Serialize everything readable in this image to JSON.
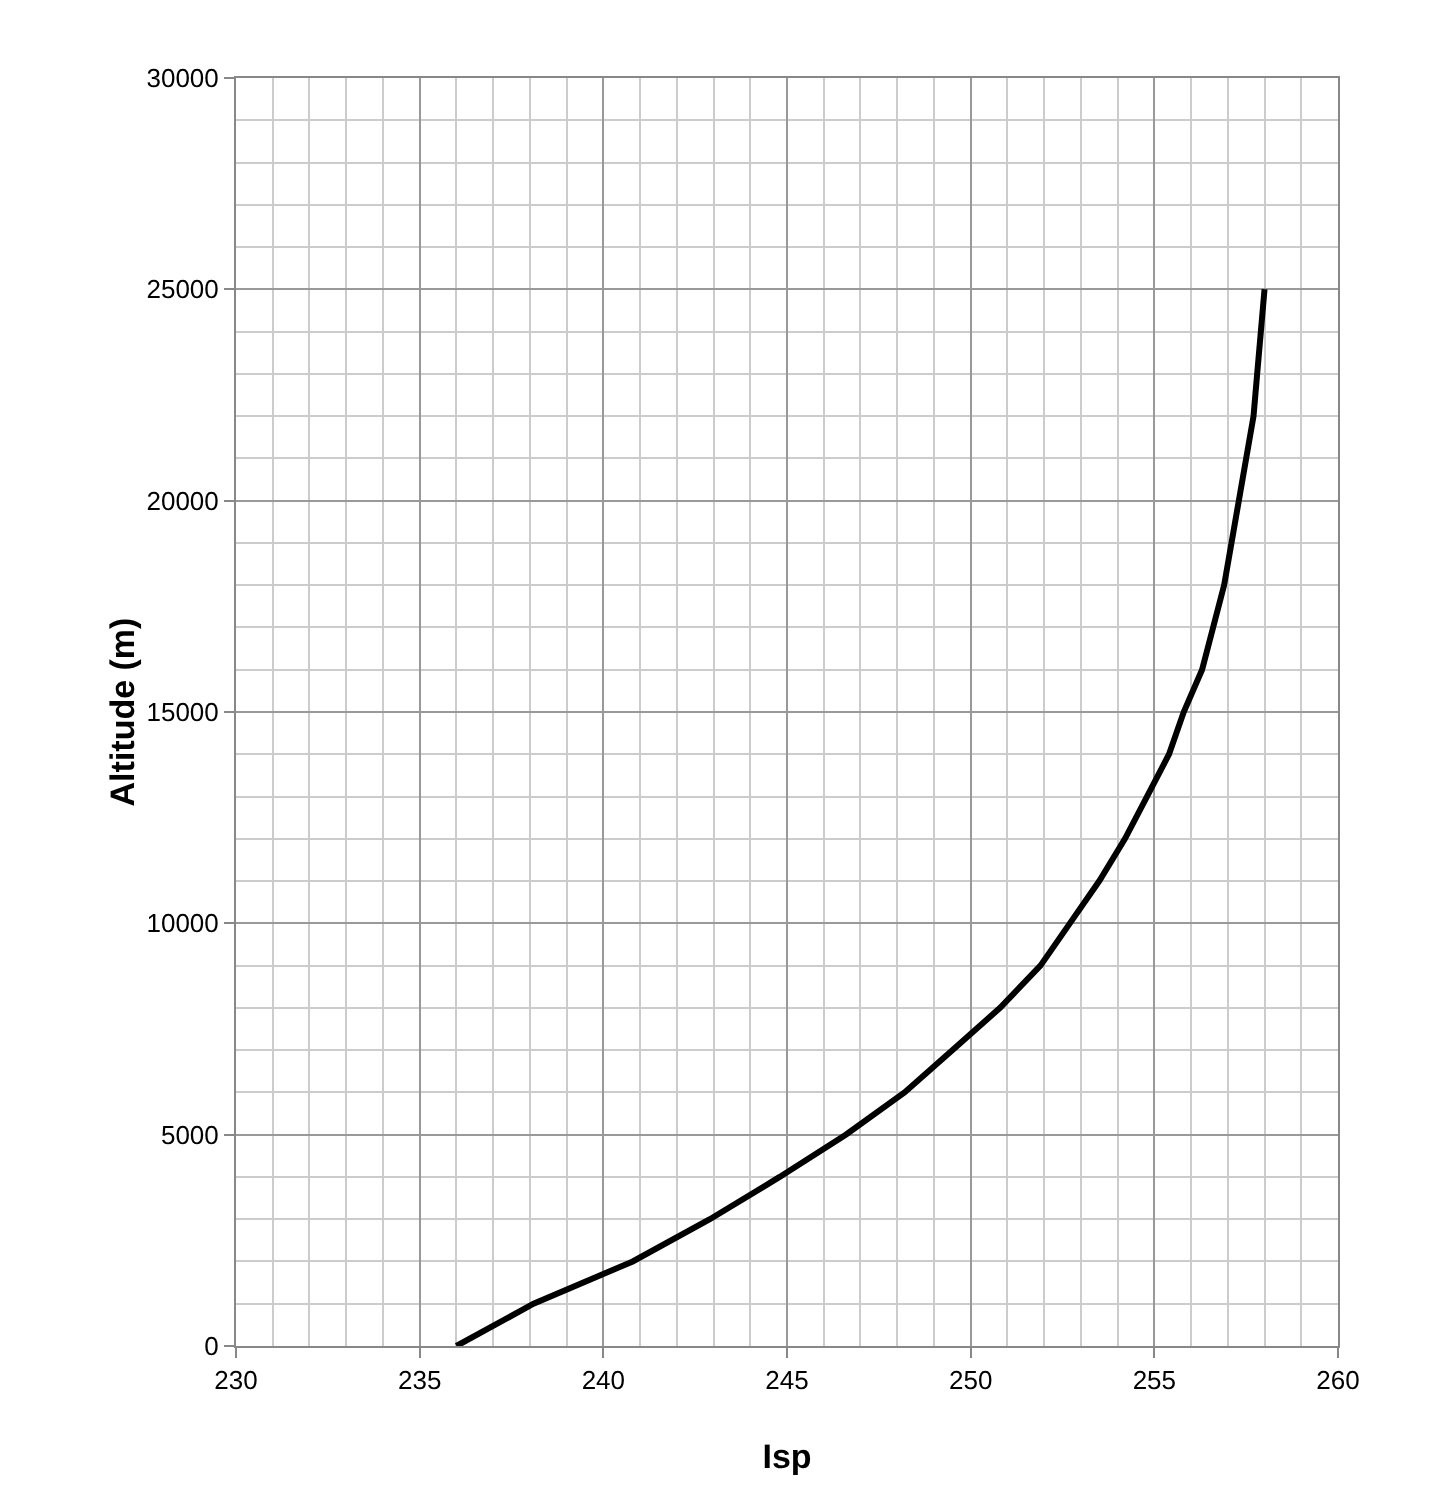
{
  "chart_data": {
    "type": "line",
    "xlabel": "Isp",
    "ylabel": "Altitude (m)",
    "x": [
      236,
      238.1,
      240.8,
      242.9,
      244.8,
      246.6,
      248.2,
      249.5,
      250.8,
      251.9,
      252.7,
      253.5,
      254.2,
      254.8,
      255.4,
      255.8,
      256.3,
      256.6,
      256.9,
      257.1,
      257.3,
      257.5,
      257.7,
      257.8,
      257.9,
      258
    ],
    "series": [
      {
        "color": "#000000",
        "values": [
          0,
          1000,
          2000,
          3000,
          4000,
          5000,
          6000,
          7000,
          8000,
          9000,
          10000,
          11000,
          12000,
          13000,
          14000,
          15000,
          16000,
          17000,
          18000,
          19000,
          20000,
          21000,
          22000,
          23000,
          24000,
          25000
        ]
      }
    ],
    "xlim": [
      230,
      260
    ],
    "xticks": [
      230,
      235,
      240,
      245,
      250,
      255,
      260
    ],
    "ylim": [
      0,
      30000
    ],
    "yticks": [
      0,
      5000,
      10000,
      15000,
      20000,
      25000,
      30000
    ],
    "grid": true,
    "marker": "none",
    "line_style": "solid"
  }
}
